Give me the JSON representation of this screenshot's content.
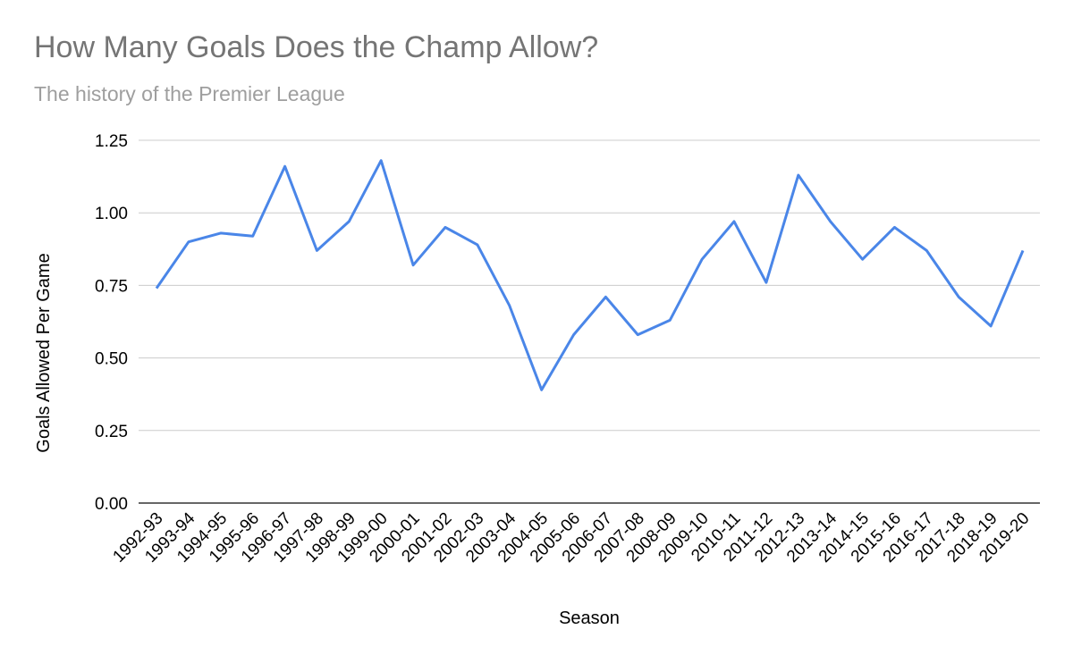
{
  "chart_data": {
    "type": "line",
    "title": "How Many Goals Does the Champ Allow?",
    "subtitle": "The history of the Premier League",
    "xlabel": "Season",
    "ylabel": "Goals Allowed Per Game",
    "ylim": [
      0,
      1.25
    ],
    "yticks": [
      "0.00",
      "0.25",
      "0.50",
      "0.75",
      "1.00",
      "1.25"
    ],
    "grid": true,
    "legend": "none",
    "line_color": "#4a86e8",
    "categories": [
      "1992-93",
      "1993-94",
      "1994-95",
      "1995-96",
      "1996-97",
      "1997-98",
      "1998-99",
      "1999-00",
      "2000-01",
      "2001-02",
      "2002-03",
      "2003-04",
      "2004-05",
      "2005-06",
      "2006-07",
      "2007-08",
      "2008-09",
      "2009-10",
      "2010-11",
      "2011-12",
      "2012-13",
      "2013-14",
      "2014-15",
      "2015-16",
      "2016-17",
      "2017-18",
      "2018-19",
      "2019-20"
    ],
    "values": [
      0.74,
      0.9,
      0.93,
      0.92,
      1.16,
      0.87,
      0.97,
      1.18,
      0.82,
      0.95,
      0.89,
      0.68,
      0.39,
      0.58,
      0.71,
      0.58,
      0.63,
      0.84,
      0.97,
      0.76,
      1.13,
      0.97,
      0.84,
      0.95,
      0.87,
      0.71,
      0.61,
      0.87
    ]
  }
}
